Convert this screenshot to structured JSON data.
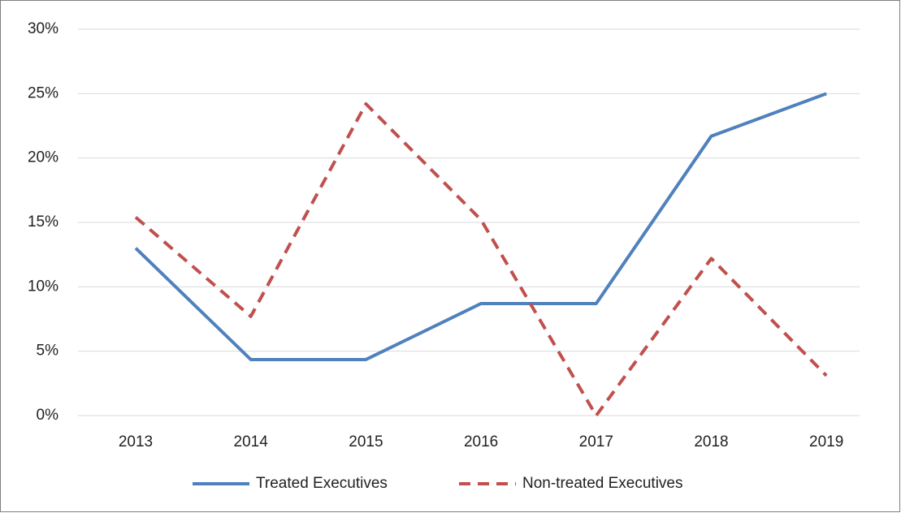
{
  "chart_data": {
    "type": "line",
    "categories": [
      "2013",
      "2014",
      "2015",
      "2016",
      "2017",
      "2018",
      "2019"
    ],
    "series": [
      {
        "name": "Treated Executives",
        "color": "#4f81bd",
        "dash": false,
        "values": [
          13.0,
          4.35,
          4.35,
          8.7,
          8.7,
          21.7,
          25.0
        ]
      },
      {
        "name": "Non-treated Executives",
        "color": "#c0504d",
        "dash": true,
        "values": [
          15.4,
          7.7,
          24.2,
          15.2,
          0,
          12.2,
          3.1
        ]
      }
    ],
    "ylim": [
      0,
      30
    ],
    "yticks": [
      {
        "value": 0,
        "label": "0%"
      },
      {
        "value": 5,
        "label": "5%"
      },
      {
        "value": 10,
        "label": "10%"
      },
      {
        "value": 15,
        "label": "15%"
      },
      {
        "value": 20,
        "label": "20%"
      },
      {
        "value": 25,
        "label": "25%"
      },
      {
        "value": 30,
        "label": "30%"
      }
    ],
    "grid": true,
    "legend": "bottom"
  }
}
